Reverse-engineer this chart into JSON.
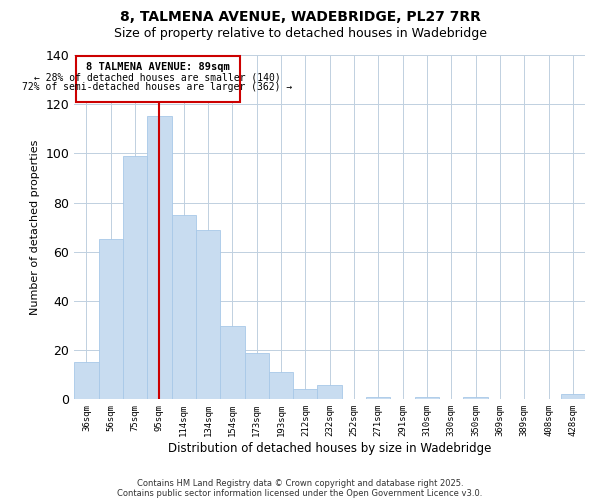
{
  "title": "8, TALMENA AVENUE, WADEBRIDGE, PL27 7RR",
  "subtitle": "Size of property relative to detached houses in Wadebridge",
  "xlabel": "Distribution of detached houses by size in Wadebridge",
  "ylabel": "Number of detached properties",
  "bar_color": "#c8dcf0",
  "bar_edge_color": "#a8c8e8",
  "categories": [
    "36sqm",
    "56sqm",
    "75sqm",
    "95sqm",
    "114sqm",
    "134sqm",
    "154sqm",
    "173sqm",
    "193sqm",
    "212sqm",
    "232sqm",
    "252sqm",
    "271sqm",
    "291sqm",
    "310sqm",
    "330sqm",
    "350sqm",
    "369sqm",
    "389sqm",
    "408sqm",
    "428sqm"
  ],
  "values": [
    15,
    65,
    99,
    115,
    75,
    69,
    30,
    19,
    11,
    4,
    6,
    0,
    1,
    0,
    1,
    0,
    1,
    0,
    0,
    0,
    2
  ],
  "ylim": [
    0,
    140
  ],
  "yticks": [
    0,
    20,
    40,
    60,
    80,
    100,
    120,
    140
  ],
  "vline_color": "#cc0000",
  "annotation_box_edge_color": "#cc0000",
  "annotation_box_face_color": "#ffffff",
  "property_label": "8 TALMENA AVENUE: 89sqm",
  "annotation_line1": "← 28% of detached houses are smaller (140)",
  "annotation_line2": "72% of semi-detached houses are larger (362) →",
  "background_color": "#ffffff",
  "grid_color": "#c0d0e0",
  "footnote1": "Contains HM Land Registry data © Crown copyright and database right 2025.",
  "footnote2": "Contains public sector information licensed under the Open Government Licence v3.0.",
  "title_fontsize": 10,
  "subtitle_fontsize": 9
}
